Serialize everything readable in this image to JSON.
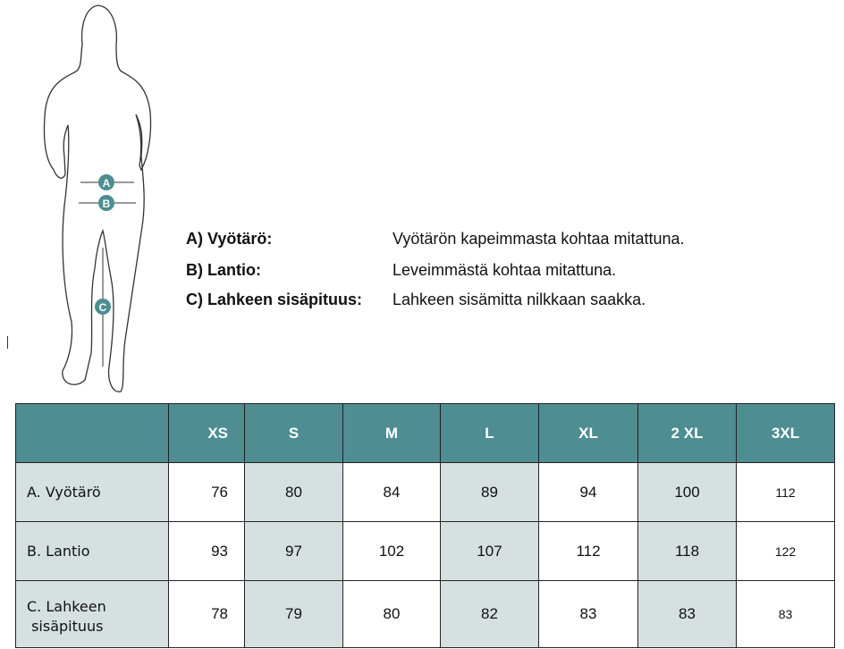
{
  "figure": {
    "markers": [
      "A",
      "B",
      "C"
    ],
    "accent": "#4e8d91"
  },
  "legend": [
    {
      "key": "A)  Vyötärö:",
      "value": "Vyötärön kapeimmasta kohtaa mitattuna."
    },
    {
      "key": "B)  Lantio:",
      "value": "Leveimmästä kohtaa mitattuna."
    },
    {
      "key": "C)  Lahkeen sisäpituus:",
      "value": "Lahkeen sisämitta nilkkaan saakka."
    }
  ],
  "table": {
    "headers": [
      "",
      "XS",
      "S",
      "M",
      "L",
      "XL",
      "2 XL",
      "3XL"
    ],
    "rows": [
      {
        "label": "A. Vyötärö",
        "values": [
          "76",
          "80",
          "84",
          "89",
          "94",
          "100",
          "112"
        ]
      },
      {
        "label": "B. Lantio",
        "values": [
          "93",
          "97",
          "102",
          "107",
          "112",
          "118",
          "122"
        ]
      },
      {
        "label": "C. Lahkeen\n sisäpituus",
        "values": [
          "78",
          "79",
          "80",
          "82",
          "83",
          "83",
          "83"
        ]
      }
    ],
    "colors": {
      "header": "#4e8d91",
      "shaded": "#d6e0e1"
    }
  }
}
